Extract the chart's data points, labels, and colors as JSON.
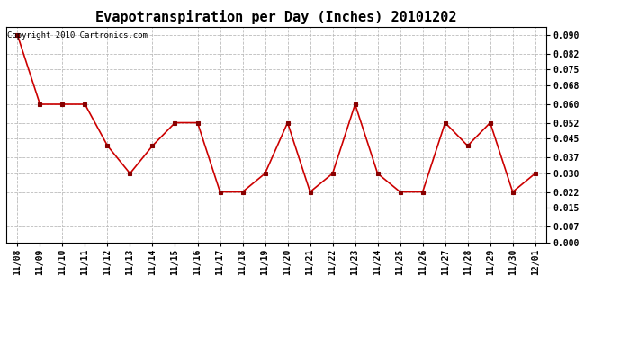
{
  "title": "Evapotranspiration per Day (Inches) 20101202",
  "copyright_text": "Copyright 2010 Cartronics.com",
  "labels": [
    "11/08",
    "11/09",
    "11/10",
    "11/11",
    "11/12",
    "11/13",
    "11/14",
    "11/15",
    "11/16",
    "11/17",
    "11/18",
    "11/19",
    "11/20",
    "11/21",
    "11/22",
    "11/23",
    "11/24",
    "11/25",
    "11/26",
    "11/27",
    "11/28",
    "11/29",
    "11/30",
    "12/01"
  ],
  "values": [
    0.09,
    0.06,
    0.06,
    0.06,
    0.042,
    0.03,
    0.042,
    0.052,
    0.052,
    0.022,
    0.022,
    0.03,
    0.052,
    0.022,
    0.03,
    0.06,
    0.03,
    0.022,
    0.022,
    0.052,
    0.042,
    0.052,
    0.022,
    0.03
  ],
  "line_color": "#cc0000",
  "marker_color": "#880000",
  "bg_color": "#ffffff",
  "plot_bg_color": "#ffffff",
  "grid_color": "#bbbbbb",
  "yticks": [
    0.0,
    0.007,
    0.015,
    0.022,
    0.03,
    0.037,
    0.045,
    0.052,
    0.06,
    0.068,
    0.075,
    0.082,
    0.09
  ],
  "ylim": [
    0.0,
    0.0935
  ],
  "title_fontsize": 11,
  "tick_fontsize": 7,
  "copyright_fontsize": 6.5
}
